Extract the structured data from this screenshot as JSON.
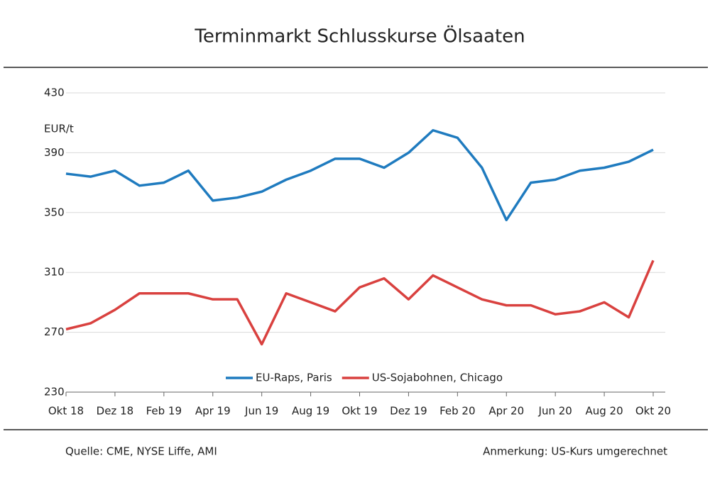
{
  "chart_data": {
    "type": "line",
    "title": "Terminmarkt Schlusskurse Ölsaaten",
    "y_label": "EUR/t",
    "x": [
      "2018-10",
      "2018-11",
      "2018-12",
      "2019-01",
      "2019-02",
      "2019-03",
      "2019-04",
      "2019-05",
      "2019-06",
      "2019-07",
      "2019-08",
      "2019-09",
      "2019-10",
      "2019-11",
      "2019-12",
      "2020-01",
      "2020-02",
      "2020-03",
      "2020-04",
      "2020-05",
      "2020-06",
      "2020-07",
      "2020-08",
      "2020-09",
      "2020-10"
    ],
    "xlim": [
      "2018-10",
      "2020-10"
    ],
    "xticks": [
      {
        "value": "2018-10",
        "label": "Okt 18"
      },
      {
        "value": "2018-12",
        "label": "Dez 18"
      },
      {
        "value": "2019-02",
        "label": "Feb 19"
      },
      {
        "value": "2019-04",
        "label": "Apr 19"
      },
      {
        "value": "2019-06",
        "label": "Jun 19"
      },
      {
        "value": "2019-08",
        "label": "Aug 19"
      },
      {
        "value": "2019-10",
        "label": "Okt 19"
      },
      {
        "value": "2019-12",
        "label": "Dez 19"
      },
      {
        "value": "2020-02",
        "label": "Feb 20"
      },
      {
        "value": "2020-04",
        "label": "Apr 20"
      },
      {
        "value": "2020-06",
        "label": "Jun 20"
      },
      {
        "value": "2020-08",
        "label": "Aug 20"
      },
      {
        "value": "2020-10",
        "label": "Okt 20"
      }
    ],
    "ylim": [
      230,
      430
    ],
    "yticks": [
      230,
      270,
      310,
      350,
      390,
      430
    ],
    "grid": true,
    "legend": "bottom",
    "series": [
      {
        "name": "EU-Raps, Paris",
        "color": "#1f7bbf",
        "values": [
          376,
          374,
          378,
          368,
          370,
          378,
          358,
          360,
          364,
          372,
          378,
          386,
          386,
          380,
          390,
          405,
          400,
          380,
          345,
          370,
          372,
          378,
          380,
          384,
          392
        ]
      },
      {
        "name": "US-Sojabohnen, Chicago",
        "color": "#d9413f",
        "values": [
          272,
          276,
          285,
          296,
          296,
          296,
          292,
          292,
          262,
          296,
          290,
          284,
          300,
          306,
          292,
          308,
          300,
          292,
          288,
          288,
          282,
          284,
          290,
          280,
          318
        ]
      }
    ],
    "source": "Quelle: CME, NYSE Liffe, AMI",
    "note": "Anmerkung: US-Kurs umgerechnet"
  }
}
